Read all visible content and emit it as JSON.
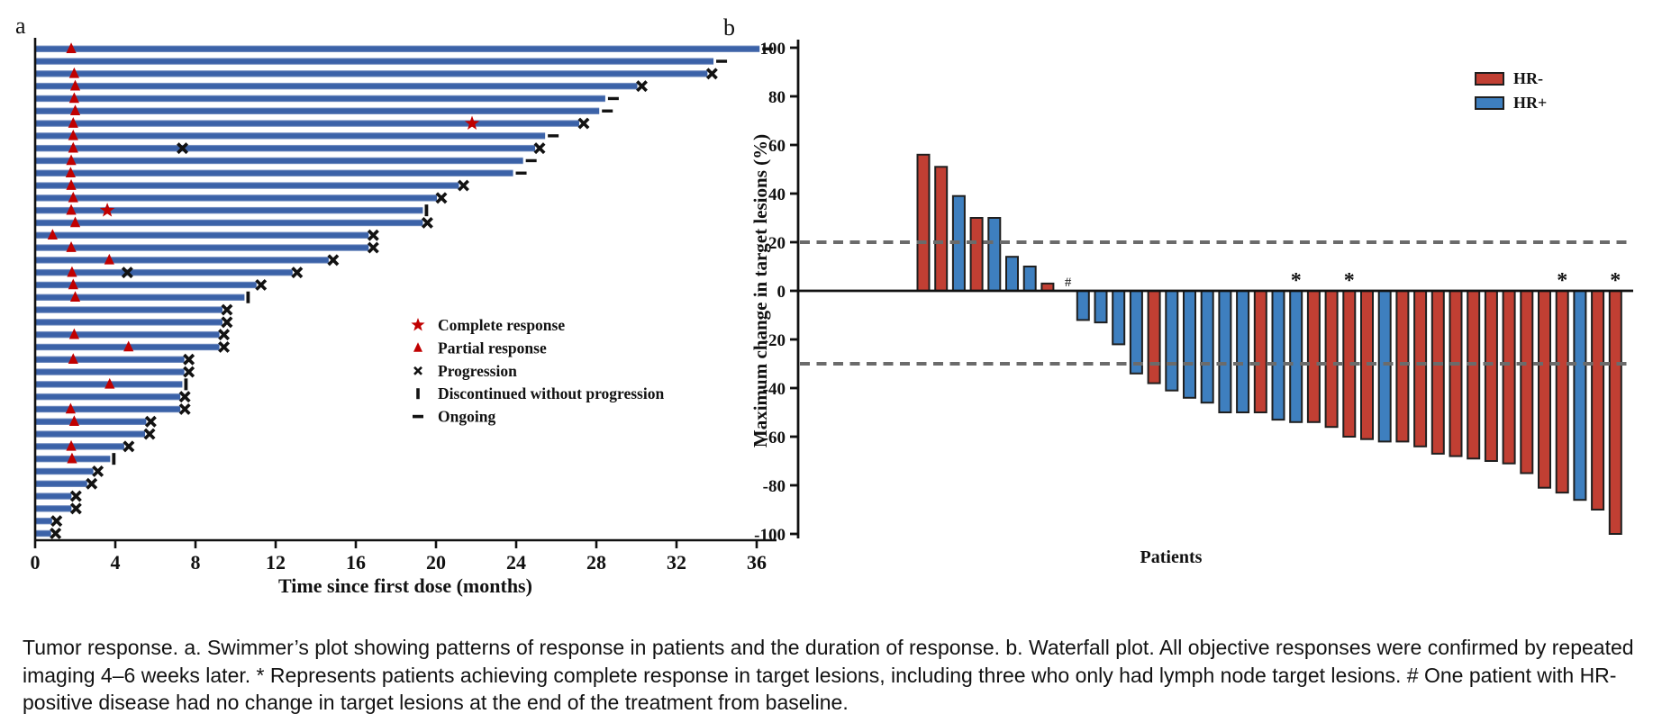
{
  "figure": {
    "panel_a_label": "a",
    "panel_b_label": "b",
    "caption": "Tumor response. a. Swimmer’s plot showing patterns of response in patients and the duration of response. b. Waterfall plot. All objective responses were confirmed by repeated imaging 4–6 weeks later. * Represents patients achieving complete response in target lesions, including three who only had lymph node target lesions. # One patient with HR-positive disease had no change in target lesions at the end of the treatment from baseline."
  },
  "colors": {
    "swimmer_bar_blue": "#3B62A8",
    "swimmer_bar_edge_light": "#98ABD1",
    "marker_red": "#C00000",
    "marker_black": "#121212",
    "waterfall_red": "#C13F33",
    "waterfall_blue": "#3E7FBF",
    "bar_outline": "#1F1F1F",
    "threshold_gray": "#6B6B6B"
  },
  "chart_data": [
    {
      "type": "bar",
      "name": "swimmer-plot",
      "orientation": "horizontal",
      "xlabel": "Time since first dose (months)",
      "xlim": [
        0,
        37
      ],
      "xticks": [
        0,
        4,
        8,
        12,
        16,
        20,
        24,
        28,
        32,
        36
      ],
      "grid": false,
      "legend_position": "center-right",
      "legend": [
        {
          "symbol": "star",
          "label": "Complete response"
        },
        {
          "symbol": "triangle",
          "label": "Partial response"
        },
        {
          "symbol": "x",
          "label": "Progression"
        },
        {
          "symbol": "vbar",
          "label": "Discontinued without progression"
        },
        {
          "symbol": "dash",
          "label": "Ongoing"
        }
      ],
      "bars": [
        {
          "duration": 36.1,
          "partial_response_at": 1.8,
          "end": "ongoing"
        },
        {
          "duration": 33.8,
          "end": "ongoing"
        },
        {
          "duration": 33.5,
          "partial_response_at": 1.95,
          "end": "progression"
        },
        {
          "duration": 30.0,
          "partial_response_at": 2.0,
          "end": "progression"
        },
        {
          "duration": 28.4,
          "partial_response_at": 1.95,
          "end": "ongoing"
        },
        {
          "duration": 28.1,
          "partial_response_at": 2.0,
          "end": "ongoing"
        },
        {
          "duration": 27.1,
          "partial_response_at": 1.9,
          "complete_response_at": 21.8,
          "end": "progression"
        },
        {
          "duration": 25.4,
          "partial_response_at": 1.9,
          "end": "ongoing"
        },
        {
          "duration": 24.9,
          "partial_response_at": 1.9,
          "progression_at": 7.35,
          "end": "progression"
        },
        {
          "duration": 24.3,
          "partial_response_at": 1.8,
          "end": "ongoing"
        },
        {
          "duration": 23.8,
          "partial_response_at": 1.77,
          "end": "ongoing"
        },
        {
          "duration": 21.1,
          "partial_response_at": 1.8,
          "end": "progression"
        },
        {
          "duration": 20.0,
          "partial_response_at": 1.9,
          "end": "progression"
        },
        {
          "duration": 19.3,
          "partial_response_at": 1.8,
          "complete_response_at": 3.6,
          "end": "discontinued"
        },
        {
          "duration": 19.3,
          "partial_response_at": 2.0,
          "end": "progression"
        },
        {
          "duration": 16.6,
          "partial_response_at": 0.87,
          "end": "progression"
        },
        {
          "duration": 16.6,
          "partial_response_at": 1.8,
          "end": "progression"
        },
        {
          "duration": 14.6,
          "partial_response_at": 3.7,
          "end": "progression"
        },
        {
          "duration": 12.8,
          "partial_response_at": 1.84,
          "progression_at": 4.6,
          "end": "progression"
        },
        {
          "duration": 11.0,
          "partial_response_at": 1.9,
          "end": "progression"
        },
        {
          "duration": 10.4,
          "partial_response_at": 2.0,
          "end": "discontinued"
        },
        {
          "duration": 9.3,
          "end": "progression"
        },
        {
          "duration": 9.3,
          "end": "progression"
        },
        {
          "duration": 9.15,
          "partial_response_at": 1.95,
          "end": "progression"
        },
        {
          "duration": 9.15,
          "partial_response_at": 4.66,
          "end": "progression"
        },
        {
          "duration": 7.4,
          "partial_response_at": 1.9,
          "end": "progression"
        },
        {
          "duration": 7.4,
          "end": "progression"
        },
        {
          "duration": 7.3,
          "partial_response_at": 3.72,
          "end": "discontinued"
        },
        {
          "duration": 7.2,
          "end": "progression"
        },
        {
          "duration": 7.2,
          "partial_response_at": 1.77,
          "end": "progression"
        },
        {
          "duration": 5.5,
          "partial_response_at": 1.95,
          "end": "progression"
        },
        {
          "duration": 5.44,
          "end": "progression"
        },
        {
          "duration": 4.4,
          "partial_response_at": 1.8,
          "end": "progression"
        },
        {
          "duration": 3.7,
          "partial_response_at": 1.84,
          "end": "discontinued"
        },
        {
          "duration": 2.86,
          "end": "progression"
        },
        {
          "duration": 2.55,
          "end": "progression"
        },
        {
          "duration": 1.77,
          "end": "progression"
        },
        {
          "duration": 1.77,
          "end": "progression"
        },
        {
          "duration": 0.8,
          "end": "progression"
        },
        {
          "duration": 0.75,
          "end": "progression"
        }
      ]
    },
    {
      "type": "bar",
      "name": "waterfall-plot",
      "ylabel": "Maximum change in target lesions (%)",
      "xlabel": "Patients",
      "ylim": [
        -100,
        100
      ],
      "yticks": [
        100,
        80,
        60,
        40,
        20,
        0,
        -20,
        -40,
        -60,
        -80,
        -100
      ],
      "thresholds": [
        20,
        -30
      ],
      "grid": false,
      "legend_position": "top-right",
      "legend": [
        {
          "label": "HR-",
          "color_key": "waterfall_red"
        },
        {
          "label": "HR+",
          "color_key": "waterfall_blue"
        }
      ],
      "values": [
        {
          "v": 56,
          "hr": "HR-"
        },
        {
          "v": 51,
          "hr": "HR-"
        },
        {
          "v": 39,
          "hr": "HR+"
        },
        {
          "v": 30,
          "hr": "HR-"
        },
        {
          "v": 30,
          "hr": "HR+"
        },
        {
          "v": 14,
          "hr": "HR+"
        },
        {
          "v": 10,
          "hr": "HR+"
        },
        {
          "v": 3,
          "hr": "HR-"
        },
        {
          "v": 0,
          "hr": "HR+",
          "mark": "#"
        },
        {
          "v": -12,
          "hr": "HR+"
        },
        {
          "v": -13,
          "hr": "HR+"
        },
        {
          "v": -22,
          "hr": "HR+"
        },
        {
          "v": -34,
          "hr": "HR+"
        },
        {
          "v": -38,
          "hr": "HR-"
        },
        {
          "v": -41,
          "hr": "HR+"
        },
        {
          "v": -44,
          "hr": "HR+"
        },
        {
          "v": -46,
          "hr": "HR+"
        },
        {
          "v": -50,
          "hr": "HR+"
        },
        {
          "v": -50,
          "hr": "HR+"
        },
        {
          "v": -50,
          "hr": "HR-"
        },
        {
          "v": -53,
          "hr": "HR+"
        },
        {
          "v": -54,
          "hr": "HR+",
          "mark": "*"
        },
        {
          "v": -54,
          "hr": "HR-"
        },
        {
          "v": -56,
          "hr": "HR-"
        },
        {
          "v": -60,
          "hr": "HR-",
          "mark": "*"
        },
        {
          "v": -61,
          "hr": "HR-"
        },
        {
          "v": -62,
          "hr": "HR+"
        },
        {
          "v": -62,
          "hr": "HR-"
        },
        {
          "v": -64,
          "hr": "HR-"
        },
        {
          "v": -67,
          "hr": "HR-"
        },
        {
          "v": -68,
          "hr": "HR-"
        },
        {
          "v": -69,
          "hr": "HR-"
        },
        {
          "v": -70,
          "hr": "HR-"
        },
        {
          "v": -71,
          "hr": "HR-"
        },
        {
          "v": -75,
          "hr": "HR-"
        },
        {
          "v": -81,
          "hr": "HR-"
        },
        {
          "v": -83,
          "hr": "HR-",
          "mark": "*"
        },
        {
          "v": -86,
          "hr": "HR+"
        },
        {
          "v": -90,
          "hr": "HR-"
        },
        {
          "v": -100,
          "hr": "HR-",
          "mark": "*"
        }
      ]
    }
  ]
}
